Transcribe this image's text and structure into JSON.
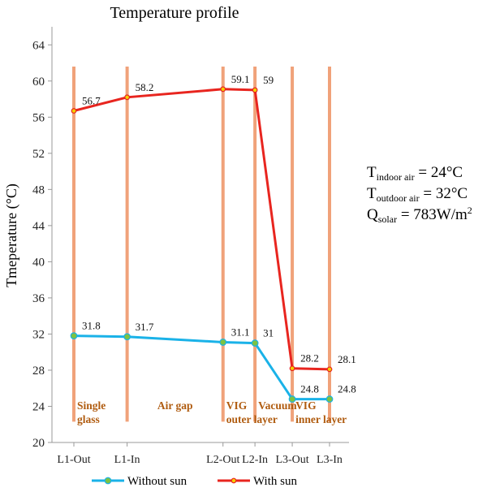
{
  "chart_data": {
    "type": "line",
    "title": "Temperature profile",
    "ylabel": "Tmeperature (°C)",
    "xlabel": "",
    "ylim": [
      20,
      66
    ],
    "yticks": [
      20,
      24,
      28,
      32,
      36,
      40,
      44,
      48,
      52,
      56,
      60,
      64
    ],
    "x_positions": [
      0,
      1,
      2.8,
      3.4,
      4.1,
      4.8
    ],
    "categories": [
      "L1-Out",
      "L1-In",
      "L2-Out",
      "L2-In",
      "L3-Out",
      "L3-In"
    ],
    "series": [
      {
        "name": "Without sun",
        "color": "#1ab2e8",
        "marker_color": "#7dc242",
        "values": [
          31.8,
          31.7,
          31.1,
          31,
          24.8,
          24.8
        ],
        "labels": [
          "31.8",
          "31.7",
          "31.1",
          "31",
          "24.8",
          "24.8"
        ]
      },
      {
        "name": "With sun",
        "color": "#e8251f",
        "marker_color": "#f5d000",
        "values": [
          56.7,
          58.2,
          59.1,
          59,
          28.2,
          28.1
        ],
        "labels": [
          "56.7",
          "58.2",
          "59.1",
          "59",
          "28.2",
          "28.1"
        ]
      }
    ],
    "layer_line_color": "#f0a27a",
    "regions": [
      {
        "lines": [
          "Single",
          "glass"
        ],
        "from": 0,
        "to": 1
      },
      {
        "lines": [
          "Air gap"
        ],
        "from": 1,
        "to": 2.8
      },
      {
        "lines": [
          "VIG",
          "outer layer"
        ],
        "from": 2.8,
        "to": 3.4
      },
      {
        "lines": [
          "Vacuum"
        ],
        "from": 3.4,
        "to": 4.1
      },
      {
        "lines": [
          "VIG",
          "inner layer"
        ],
        "from": 4.1,
        "to": 4.8
      }
    ],
    "annotations": [
      {
        "main": "T",
        "sub": "indoor air",
        "rest": " = 24°C"
      },
      {
        "main": "T",
        "sub": "outdoor air",
        "rest": " = 32°C"
      },
      {
        "main": "Q",
        "sub": "solar",
        "rest": " = 783W/m",
        "sup": "2"
      }
    ],
    "legend": {
      "position": "bottom"
    }
  }
}
